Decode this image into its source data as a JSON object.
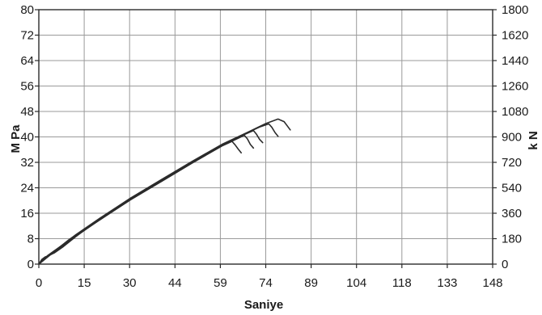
{
  "chart_data": {
    "type": "line",
    "title": "",
    "xlabel": "Saniye",
    "ylabel_left": "M Pa",
    "ylabel_right": "k N",
    "xlim": [
      0,
      148
    ],
    "ylim_left": [
      0,
      80
    ],
    "ylim_right": [
      0,
      1800
    ],
    "grid": true,
    "x_ticks": [
      "0",
      "15",
      "30",
      "44",
      "59",
      "74",
      "89",
      "104",
      "118",
      "133",
      "148"
    ],
    "x_tick_values": [
      0,
      14.8,
      29.6,
      44.4,
      59.2,
      74,
      88.8,
      103.6,
      118.4,
      133.2,
      148
    ],
    "y_left_ticks": [
      0,
      8,
      16,
      24,
      32,
      40,
      48,
      56,
      64,
      72,
      80
    ],
    "y_right_ticks": [
      0,
      180,
      360,
      540,
      720,
      900,
      1080,
      1260,
      1440,
      1620,
      1800
    ],
    "series": [
      {
        "x": [
          0,
          1,
          2,
          3,
          5,
          8,
          12,
          16,
          20,
          25,
          30,
          35,
          40,
          45,
          50,
          55,
          60,
          63,
          64,
          65,
          66
        ],
        "y": [
          0,
          1.5,
          2.2,
          2.6,
          3.5,
          5.5,
          8.6,
          11.5,
          14,
          17.2,
          20.3,
          23.2,
          26,
          28.9,
          31.8,
          34.6,
          37.3,
          38.6,
          37.5,
          36.2,
          35
        ]
      },
      {
        "x": [
          0,
          2,
          5,
          10,
          20,
          30,
          40,
          50,
          60,
          65,
          67,
          68,
          69,
          70
        ],
        "y": [
          0,
          2,
          3.6,
          7.4,
          14,
          20.3,
          26,
          31.8,
          37.3,
          39.6,
          40.5,
          39.4,
          37.6,
          36.5
        ]
      },
      {
        "x": [
          0,
          3,
          10,
          20,
          30,
          40,
          50,
          60,
          66,
          70,
          71,
          72,
          73
        ],
        "y": [
          0,
          2.8,
          7.6,
          14.1,
          20.4,
          26.2,
          31.9,
          37.4,
          40.3,
          42,
          40.8,
          39.2,
          38.2
        ]
      },
      {
        "x": [
          0,
          4,
          10,
          20,
          30,
          40,
          50,
          60,
          67,
          72,
          75,
          76,
          77,
          78
        ],
        "y": [
          0,
          3.2,
          7.8,
          14.3,
          20.6,
          26.4,
          32.1,
          37.6,
          40.9,
          43.1,
          44.1,
          43,
          41.4,
          40.2
        ]
      },
      {
        "x": [
          0,
          5,
          12,
          20,
          30,
          40,
          50,
          60,
          68,
          74,
          78,
          80,
          81,
          82
        ],
        "y": [
          0,
          3.9,
          9.2,
          14.5,
          20.8,
          26.6,
          32.3,
          37.8,
          41.4,
          44.2,
          45.6,
          44.8,
          43.5,
          42.2
        ]
      }
    ]
  }
}
